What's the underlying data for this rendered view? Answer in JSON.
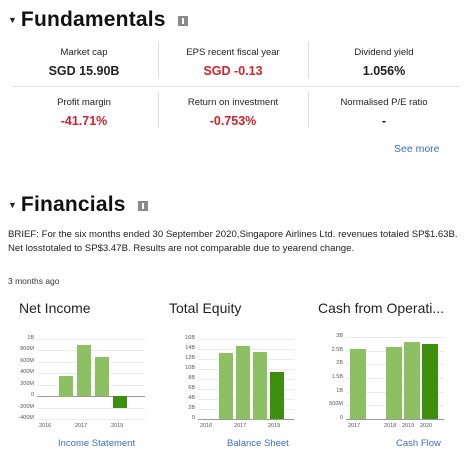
{
  "fundamentals": {
    "title": "Fundamentals",
    "metrics": [
      {
        "label": "Market cap",
        "value": "SGD 15.90B",
        "tone": "dark"
      },
      {
        "label": "EPS recent fiscal year",
        "value": "SGD -0.13",
        "tone": "neg"
      },
      {
        "label": "Dividend yield",
        "value": "1.056%",
        "tone": "dark"
      },
      {
        "label": "Profit margin",
        "value": "-41.71%",
        "tone": "neg"
      },
      {
        "label": "Return on investment",
        "value": "-0.753%",
        "tone": "neg"
      },
      {
        "label": "Normalised P/E ratio",
        "value": "-",
        "tone": "dark"
      }
    ],
    "see_more": "See more"
  },
  "financials": {
    "title": "Financials",
    "brief": "BRIEF: For the six months ended 30 September 2020,Singapore Airlines Ltd. revenues totaled SP$1.63B. Net losstotaled to SP$3.47B. Results are not comparable due to yearend change.",
    "time_ago": "3 months ago",
    "colors": {
      "bar_light": "#8dc063",
      "bar_dark": "#3f8f0e",
      "link": "#3a6fc2",
      "negative": "#d0232b"
    }
  },
  "chart_data": [
    {
      "type": "bar",
      "title": "Net Income",
      "link": "Income Statement",
      "ylim": [
        -400,
        1000
      ],
      "yticks": [
        "1B",
        "800M",
        "600M",
        "400M",
        "200M",
        "0",
        "-200M",
        "-400M"
      ],
      "ytick_values": [
        1000,
        800,
        600,
        400,
        200,
        0,
        -200,
        -400
      ],
      "xticks": [
        "2016",
        "2017",
        "2019"
      ],
      "xtick_index": [
        0,
        2,
        4
      ],
      "values": [
        null,
        360,
        890,
        680,
        -210
      ],
      "highlight_last": true
    },
    {
      "type": "bar",
      "title": "Total Equity",
      "link": "Balance Sheet",
      "ylim": [
        0,
        16
      ],
      "yticks": [
        "16B",
        "14B",
        "12B",
        "10B",
        "8B",
        "6B",
        "4B",
        "2B",
        "0"
      ],
      "ytick_values": [
        16,
        14,
        12,
        10,
        8,
        6,
        4,
        2,
        0
      ],
      "xticks": [
        "2016",
        "2017",
        "2019"
      ],
      "xtick_index": [
        0,
        2,
        4
      ],
      "values": [
        null,
        13.2,
        14.6,
        13.5,
        9.4
      ],
      "highlight_last": true
    },
    {
      "type": "bar",
      "title": "Cash from Operati...",
      "link": "Cash Flow",
      "ylim": [
        0,
        3
      ],
      "yticks": [
        "3B",
        "2.5B",
        "2B",
        "1.5B",
        "1B",
        "500M",
        "0"
      ],
      "ytick_values": [
        3,
        2.5,
        2,
        1.5,
        1,
        0.5,
        0
      ],
      "xticks": [
        "2017",
        "2018",
        "2019",
        "2020"
      ],
      "xtick_index": [
        0,
        2,
        3,
        4
      ],
      "values": [
        2.55,
        null,
        2.65,
        2.8,
        2.75
      ],
      "highlight_last": true
    }
  ]
}
